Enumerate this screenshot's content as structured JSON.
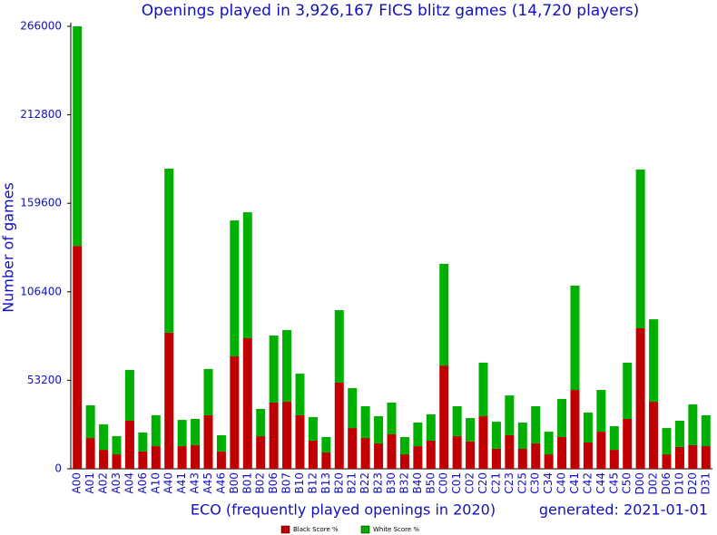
{
  "chart_data": {
    "type": "stacked_bar",
    "title": "Openings played in 3,926,167 FICS blitz games (14,720 players)",
    "y_label": "Number of games",
    "x_label": "ECO (frequently played openings in 2020)",
    "note": "generated: 2021-01-01",
    "categories": [
      "A00",
      "A01",
      "A02",
      "A03",
      "A04",
      "A06",
      "A10",
      "A40",
      "A41",
      "A43",
      "A45",
      "A46",
      "B00",
      "B01",
      "B02",
      "B06",
      "B07",
      "B10",
      "B12",
      "B13",
      "B20",
      "B21",
      "B22",
      "B23",
      "B30",
      "B32",
      "B40",
      "B50",
      "C00",
      "C01",
      "C02",
      "C20",
      "C21",
      "C23",
      "C25",
      "C30",
      "C34",
      "C40",
      "C41",
      "C42",
      "C44",
      "C45",
      "C50",
      "D00",
      "D02",
      "D06",
      "D10",
      "D20",
      "D31"
    ],
    "series": [
      {
        "name": "Black Score %",
        "color": "#c00000",
        "values": [
          134000,
          18500,
          11400,
          8700,
          28900,
          10400,
          13600,
          81800,
          13600,
          14200,
          32200,
          10400,
          67600,
          78500,
          19600,
          39800,
          40300,
          32200,
          16900,
          9800,
          51800,
          24500,
          18500,
          15300,
          20700,
          8700,
          13600,
          16900,
          62100,
          19600,
          16400,
          31600,
          12000,
          20200,
          12000,
          15300,
          8700,
          19100,
          47400,
          15800,
          22300,
          11400,
          30000,
          84500,
          40300,
          8700,
          13100,
          14200,
          13600
        ]
      },
      {
        "name": "White Score %",
        "color": "#00b000",
        "values": [
          132000,
          19650,
          15300,
          10900,
          30500,
          11400,
          18600,
          98600,
          15800,
          15800,
          27800,
          9800,
          81700,
          75700,
          16400,
          40300,
          43100,
          25000,
          14200,
          9300,
          43600,
          24000,
          19100,
          16300,
          19100,
          10400,
          14200,
          15800,
          61100,
          18000,
          14100,
          32200,
          16300,
          23900,
          15800,
          22300,
          13600,
          22900,
          62700,
          18000,
          25100,
          14200,
          33800,
          95400,
          49600,
          15800,
          15800,
          24500,
          18600
        ]
      }
    ],
    "ylim": [
      0,
      266000
    ],
    "yticks": [
      0,
      53200,
      106400,
      159600,
      212800,
      266000
    ]
  }
}
